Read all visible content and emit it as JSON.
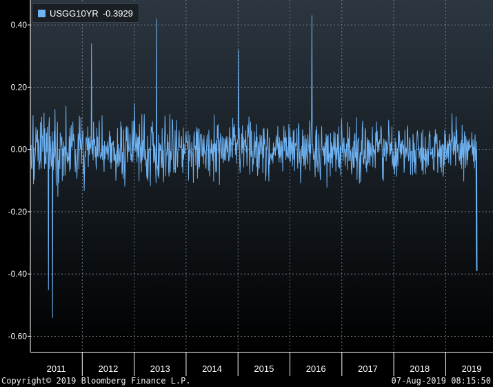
{
  "chart_data": {
    "type": "line",
    "title": "",
    "xlabel": "",
    "ylabel": "",
    "x_categories": [
      "2011",
      "2012",
      "2013",
      "2014",
      "2015",
      "2016",
      "2017",
      "2018",
      "2019"
    ],
    "ylim": [
      -0.65,
      0.48
    ],
    "yticks": [
      "0.40",
      "0.20",
      "0.00",
      "-0.20",
      "-0.40",
      "-0.60"
    ],
    "ytick_values": [
      0.4,
      0.2,
      0.0,
      -0.2,
      -0.4,
      -0.6
    ],
    "grid": true,
    "legend_position": "top-left",
    "series": [
      {
        "name": "USGG10YR",
        "last_value": "-0.3929",
        "color": "#6fb2f2",
        "notable_points": [
          {
            "x": "2011-06",
            "y": -0.54
          },
          {
            "x": "2011-05",
            "y": -0.45
          },
          {
            "x": "2013-06",
            "y": 0.42
          },
          {
            "x": "2016-06",
            "y": 0.43
          },
          {
            "x": "2015-01",
            "y": 0.32
          },
          {
            "x": "2012-03",
            "y": 0.34
          },
          {
            "x": "2019-08",
            "y": -0.39
          }
        ]
      }
    ]
  },
  "legend": {
    "label": "USGG10YR",
    "value": "-0.3929",
    "swatch_color": "#6fb2f2"
  },
  "footer": {
    "copyright": "Copyright© 2019 Bloomberg Finance L.P.",
    "timestamp": "07-Aug-2019 08:15:50"
  }
}
